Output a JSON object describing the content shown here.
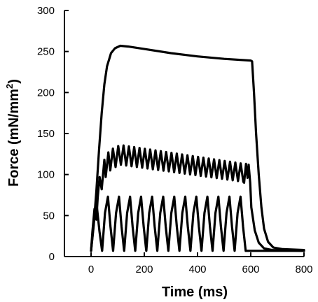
{
  "chart_data": {
    "type": "line",
    "xlabel": "Time (ms)",
    "ylabel_main": "Force (mN/mm",
    "ylabel_sup": "2",
    "ylabel_close": ")",
    "xlim": [
      -100,
      800
    ],
    "ylim": [
      0,
      300
    ],
    "xticks": [
      0,
      200,
      400,
      600,
      800
    ],
    "yticks": [
      0,
      50,
      100,
      150,
      200,
      250,
      300
    ],
    "grid": false,
    "legend": "none",
    "series": [
      {
        "kind": "unfused-tetanus-low",
        "baseline": 7,
        "start": 0,
        "pulse_count": 14,
        "pulse_interval": 41.5,
        "first_peak": 60,
        "peak": 73,
        "rise_ms": 22,
        "decay_ms": 19
      },
      {
        "kind": "partially-fused-tetanus",
        "points": [
          [
            0,
            7
          ],
          [
            5,
            30
          ],
          [
            13,
            58
          ],
          [
            20,
            45
          ],
          [
            25,
            72
          ],
          [
            32,
            97
          ],
          [
            40,
            82
          ],
          [
            50,
            118
          ],
          [
            55,
            97
          ],
          [
            65,
            127
          ],
          [
            72,
            105
          ],
          [
            575,
            90
          ],
          [
            582,
            113
          ],
          [
            588,
            96
          ],
          [
            592,
            112
          ],
          [
            598,
            90
          ],
          [
            602,
            60
          ],
          [
            615,
            32
          ],
          [
            630,
            17
          ],
          [
            650,
            10
          ],
          [
            680,
            8
          ],
          [
            800,
            7
          ]
        ],
        "oscillation_start": 72,
        "oscillation_end": 575,
        "oscillation_period": 20,
        "mid_start": 118,
        "mid_peak": 124,
        "mid_end": 102,
        "amp_start": 12,
        "amp_peak": 12,
        "amp_end": 11,
        "mid_peak_time": 110
      },
      {
        "kind": "fused-tetanus",
        "points": [
          [
            0,
            7
          ],
          [
            10,
            38
          ],
          [
            20,
            80
          ],
          [
            30,
            130
          ],
          [
            40,
            175
          ],
          [
            50,
            210
          ],
          [
            60,
            232
          ],
          [
            75,
            248
          ],
          [
            90,
            254
          ],
          [
            110,
            257
          ],
          [
            140,
            256
          ],
          [
            200,
            253
          ],
          [
            300,
            248
          ],
          [
            400,
            244
          ],
          [
            500,
            241
          ],
          [
            600,
            239
          ],
          [
            605,
            238
          ],
          [
            612,
            200
          ],
          [
            620,
            150
          ],
          [
            630,
            100
          ],
          [
            640,
            60
          ],
          [
            650,
            34
          ],
          [
            665,
            18
          ],
          [
            685,
            11
          ],
          [
            720,
            9
          ],
          [
            800,
            8
          ]
        ]
      }
    ]
  }
}
